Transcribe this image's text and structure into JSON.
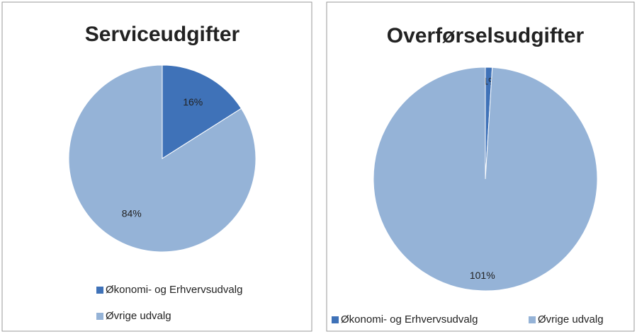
{
  "chart_data": [
    {
      "type": "pie",
      "title": "Serviceudgifter",
      "categories": [
        "Økonomi- og Erhvervsudvalg",
        "Øvrige udvalg"
      ],
      "values": [
        16,
        84
      ],
      "value_labels": [
        "16%",
        "84%"
      ],
      "colors": [
        "#3f72b8",
        "#95b3d7"
      ],
      "legend": "bottom"
    },
    {
      "type": "pie",
      "title": "Overførselsudgifter",
      "categories": [
        "Økonomi- og Erhvervsudvalg",
        "Øvrige udvalg"
      ],
      "values": [
        -1,
        101
      ],
      "value_labels": [
        "-1%",
        "101%"
      ],
      "colors": [
        "#3f72b8",
        "#95b3d7"
      ],
      "legend": "bottom"
    }
  ]
}
